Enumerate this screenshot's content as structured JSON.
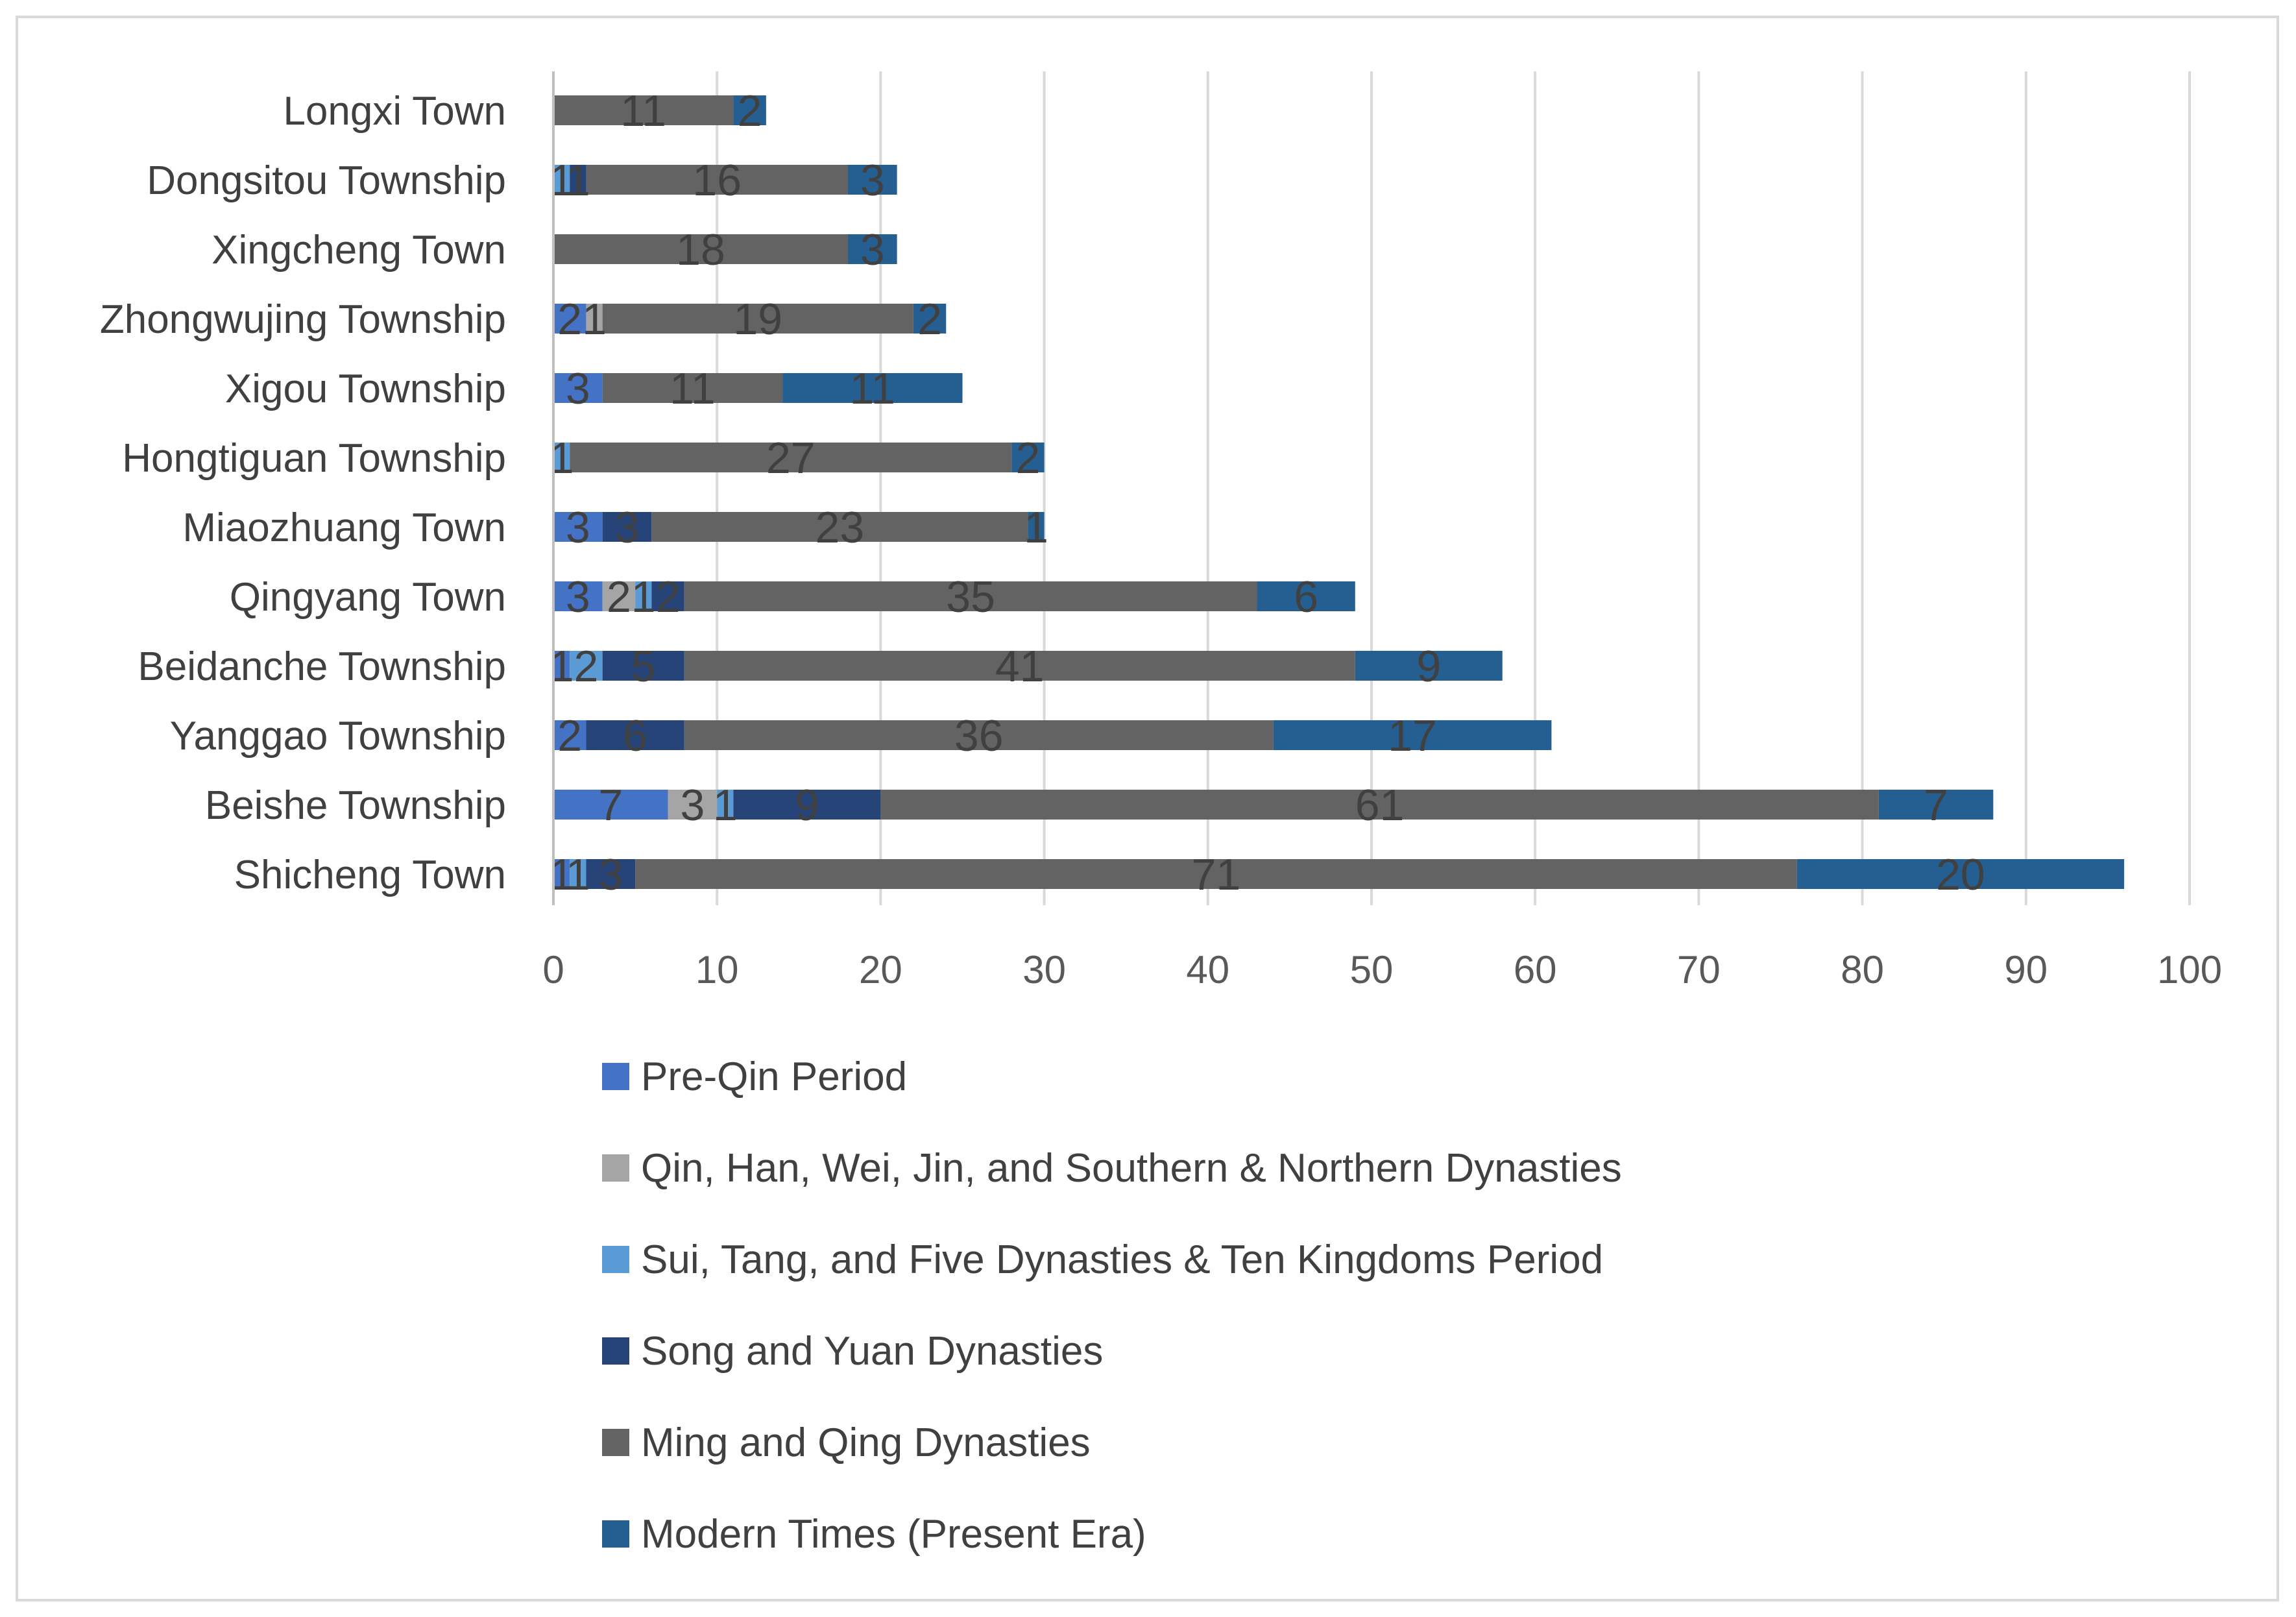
{
  "chart_data": {
    "type": "bar",
    "orientation": "horizontal",
    "stacked": true,
    "title": "",
    "xlabel": "",
    "ylabel": "",
    "xlim": [
      0,
      100
    ],
    "x_ticks": [
      0,
      10,
      20,
      30,
      40,
      50,
      60,
      70,
      80,
      90,
      100
    ],
    "grid": true,
    "legend_position": "bottom",
    "categories": [
      "Longxi Town",
      "Dongsitou Township",
      "Xingcheng Town",
      "Zhongwujing Township",
      "Xigou Township",
      "Hongtiguan Township",
      "Miaozhuang Town",
      "Qingyang Town",
      "Beidanche Township",
      "Yanggao Township",
      "Beishe Township",
      "Shicheng Town"
    ],
    "series": [
      {
        "name": "Pre-Qin Period",
        "color": "#4472c4",
        "values": [
          0,
          0,
          0,
          2,
          3,
          0,
          3,
          3,
          1,
          2,
          7,
          1
        ]
      },
      {
        "name": "Qin, Han, Wei, Jin, and Southern & Northern Dynasties",
        "color": "#a5a5a5",
        "values": [
          0,
          0,
          0,
          1,
          0,
          0,
          0,
          2,
          0,
          0,
          3,
          0
        ]
      },
      {
        "name": "Sui, Tang, and Five Dynasties & Ten Kingdoms Period",
        "color": "#5b9bd5",
        "values": [
          0,
          1,
          0,
          0,
          0,
          1,
          0,
          1,
          2,
          0,
          1,
          1
        ]
      },
      {
        "name": "Song and Yuan Dynasties",
        "color": "#264478",
        "values": [
          0,
          1,
          0,
          0,
          0,
          0,
          3,
          2,
          5,
          6,
          9,
          3
        ]
      },
      {
        "name": "Ming and Qing Dynasties",
        "color": "#636363",
        "values": [
          11,
          16,
          18,
          19,
          11,
          27,
          23,
          35,
          41,
          36,
          61,
          71
        ]
      },
      {
        "name": "Modern Times (Present Era)",
        "color": "#255e91",
        "values": [
          2,
          3,
          3,
          2,
          11,
          2,
          1,
          6,
          9,
          17,
          7,
          20
        ]
      }
    ]
  }
}
